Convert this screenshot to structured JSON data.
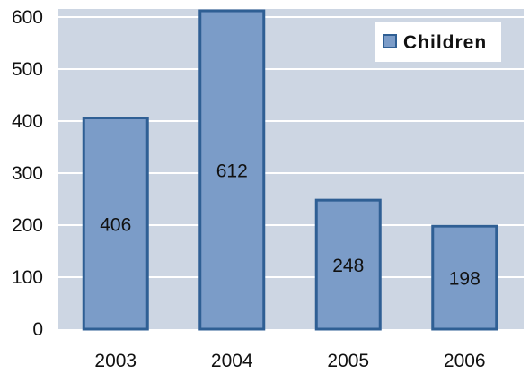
{
  "chart_data": {
    "type": "bar",
    "categories": [
      "2003",
      "2004",
      "2005",
      "2006"
    ],
    "series": [
      {
        "name": "Children",
        "values": [
          406,
          612,
          248,
          198
        ]
      }
    ],
    "title": "",
    "xlabel": "",
    "ylabel": "",
    "ylim": [
      0,
      600
    ],
    "yticks": [
      0,
      100,
      200,
      300,
      400,
      500,
      600
    ],
    "grid": true,
    "legend_position": "top-right",
    "colors": {
      "plot_background": "#cdd6e3",
      "bar_fill": "#7b9cc8",
      "bar_stroke": "#2f5f94",
      "gridline": "#ffffff"
    }
  }
}
